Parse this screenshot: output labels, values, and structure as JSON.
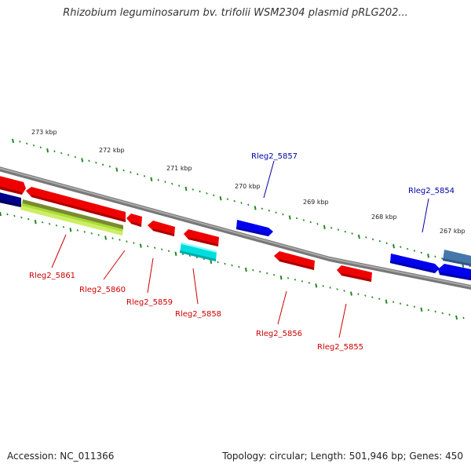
{
  "title": "Rhizobium leguminosarum bv. trifolii WSM2304 plasmid pRLG202...",
  "footer": {
    "accession": "Accession: NC_011366",
    "summary": "Topology: circular; Length: 501,946 bp; Genes: 450"
  },
  "ruler_labels": [
    "273 kbp",
    "272 kbp",
    "271 kbp",
    "270 kbp",
    "269 kbp",
    "268 kbp",
    "267 kbp"
  ],
  "colors": {
    "forward_gene": "#0000ee",
    "reverse_gene": "#ee0000",
    "highlight_gene": "#00dddd",
    "rna_feature": "#99cc33",
    "tick": "#228822",
    "backbone": "#888888",
    "forward_label": "#0000aa",
    "reverse_label": "#cc0000",
    "other_feature": "#4477aa"
  },
  "genes": [
    {
      "label": "Rleg2_5857",
      "strand": "forward"
    },
    {
      "label": "Rleg2_5854",
      "strand": "forward"
    },
    {
      "label": "Rleg2_5861",
      "strand": "reverse"
    },
    {
      "label": "Rleg2_5860",
      "strand": "reverse"
    },
    {
      "label": "Rleg2_5859",
      "strand": "reverse"
    },
    {
      "label": "Rleg2_5858",
      "strand": "reverse"
    },
    {
      "label": "Rleg2_5856",
      "strand": "reverse"
    },
    {
      "label": "Rleg2_5855",
      "strand": "reverse"
    }
  ]
}
